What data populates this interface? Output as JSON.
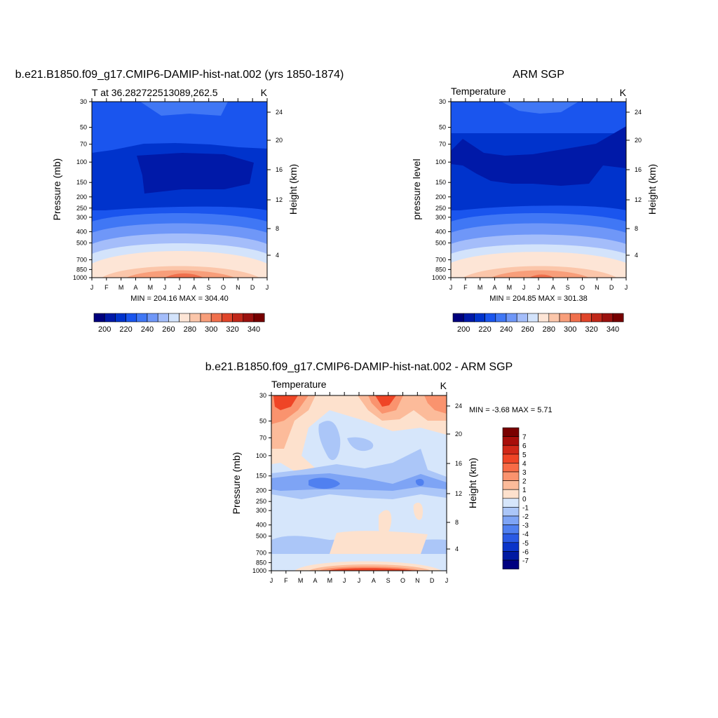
{
  "chart_data": [
    {
      "type": "heatmap",
      "title": "b.e21.B1850.f09_g17.CMIP6-DAMIP-hist-nat.002 (yrs 1850-1874)",
      "subtitle_left": "T at 36.282722513089,262.5",
      "subtitle_right": "K",
      "ylabel": "Pressure (mb)",
      "ylabel_right": "Height (km)",
      "x_ticks": [
        "J",
        "F",
        "M",
        "A",
        "M",
        "J",
        "J",
        "A",
        "S",
        "O",
        "N",
        "D",
        "J"
      ],
      "pressure_ticks": [
        30,
        50,
        70,
        100,
        150,
        200,
        250,
        300,
        400,
        500,
        700,
        850,
        1000
      ],
      "height_ticks": [
        24,
        20,
        16,
        12,
        8,
        4
      ],
      "stats": "MIN = 204.16 MAX = 304.40",
      "colorbar": {
        "orientation": "horizontal",
        "labels": [
          "200",
          "220",
          "240",
          "260",
          "280",
          "300",
          "320",
          "340"
        ]
      }
    },
    {
      "type": "heatmap",
      "title": "ARM SGP",
      "subtitle_left": "Temperature",
      "subtitle_right": "K",
      "ylabel": "pressure level",
      "ylabel_right": "Height (km)",
      "x_ticks": [
        "J",
        "F",
        "M",
        "A",
        "M",
        "J",
        "J",
        "A",
        "S",
        "O",
        "N",
        "D",
        "J"
      ],
      "pressure_ticks": [
        30,
        50,
        70,
        100,
        150,
        200,
        250,
        300,
        400,
        500,
        700,
        850,
        1000
      ],
      "height_ticks": [
        24,
        20,
        16,
        12,
        8,
        4
      ],
      "stats": "MIN = 204.85 MAX = 301.38",
      "colorbar": {
        "orientation": "horizontal",
        "labels": [
          "200",
          "220",
          "240",
          "260",
          "280",
          "300",
          "320",
          "340"
        ]
      }
    },
    {
      "type": "heatmap",
      "title": "b.e21.B1850.f09_g17.CMIP6-DAMIP-hist-nat.002 - ARM SGP",
      "subtitle_left": "Temperature",
      "subtitle_right": "K",
      "ylabel": "Pressure (mb)",
      "ylabel_right": "Height (km)",
      "x_ticks": [
        "J",
        "F",
        "M",
        "A",
        "M",
        "J",
        "J",
        "A",
        "S",
        "O",
        "N",
        "D",
        "J"
      ],
      "pressure_ticks": [
        30,
        50,
        70,
        100,
        150,
        200,
        250,
        300,
        400,
        500,
        700,
        850,
        1000
      ],
      "height_ticks": [
        24,
        20,
        16,
        12,
        8,
        4
      ],
      "stats": "MIN =  -3.68 MAX =   5.71",
      "colorbar": {
        "orientation": "vertical",
        "labels": [
          "7",
          "6",
          "5",
          "4",
          "3",
          "2",
          "1",
          "0",
          "-1",
          "-2",
          "-3",
          "-4",
          "-5",
          "-6",
          "-7"
        ]
      }
    }
  ],
  "colors": {
    "temp_scale": [
      "#00007d",
      "#0019a8",
      "#0033cc",
      "#1a55ee",
      "#4077f5",
      "#6f97f8",
      "#a4bdfa",
      "#d3e3fb",
      "#fde5d6",
      "#fbc6aa",
      "#f89e7a",
      "#f0704d",
      "#e0452a",
      "#c0281a",
      "#9b120f",
      "#760000"
    ],
    "diff_scale": [
      "#7a0000",
      "#a80e0a",
      "#d12818",
      "#ef4526",
      "#f86b46",
      "#fa936e",
      "#fcbb9a",
      "#fde1cd",
      "#d6e6fb",
      "#abc6f8",
      "#7ea4f5",
      "#5080f0",
      "#2a5ae5",
      "#0a34c9",
      "#001aa2",
      "#000080"
    ]
  }
}
